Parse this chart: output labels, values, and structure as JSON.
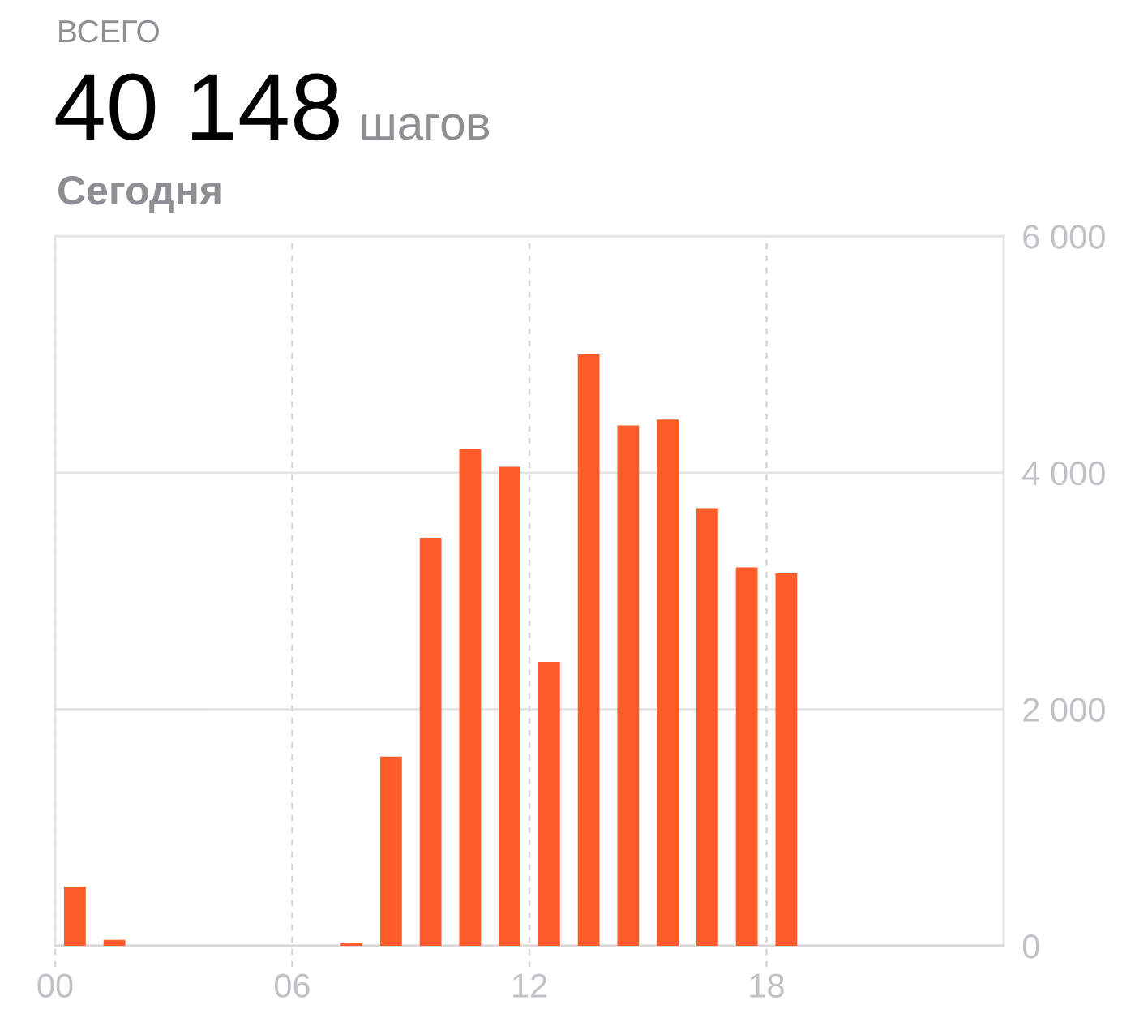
{
  "chart_data": {
    "type": "bar",
    "title": "40 148",
    "subtitle": "Сегодня",
    "annotations": [
      "ВСЕГО",
      "шагов"
    ],
    "x": [
      0.5,
      1.5,
      7.5,
      8.5,
      9.5,
      10.5,
      11.5,
      12.5,
      13.5,
      14.5,
      15.5,
      16.5,
      17.5,
      18.5
    ],
    "values": [
      500,
      50,
      20,
      1600,
      3450,
      4200,
      4050,
      2400,
      5000,
      4400,
      4450,
      3700,
      3200,
      3150
    ],
    "color": "#fd5c28",
    "xlim": [
      0,
      24
    ],
    "xticks": [
      {
        "value": 0,
        "label": "00"
      },
      {
        "value": 6,
        "label": "06"
      },
      {
        "value": 12,
        "label": "12"
      },
      {
        "value": 18,
        "label": "18"
      }
    ],
    "ylim": [
      0,
      6000
    ],
    "yticks": [
      0,
      {
        "value": 2000,
        "label": "2 000"
      },
      {
        "value": 4000,
        "label": "4 000"
      },
      {
        "value": 6000,
        "label": "6 000"
      }
    ],
    "grid": true
  }
}
